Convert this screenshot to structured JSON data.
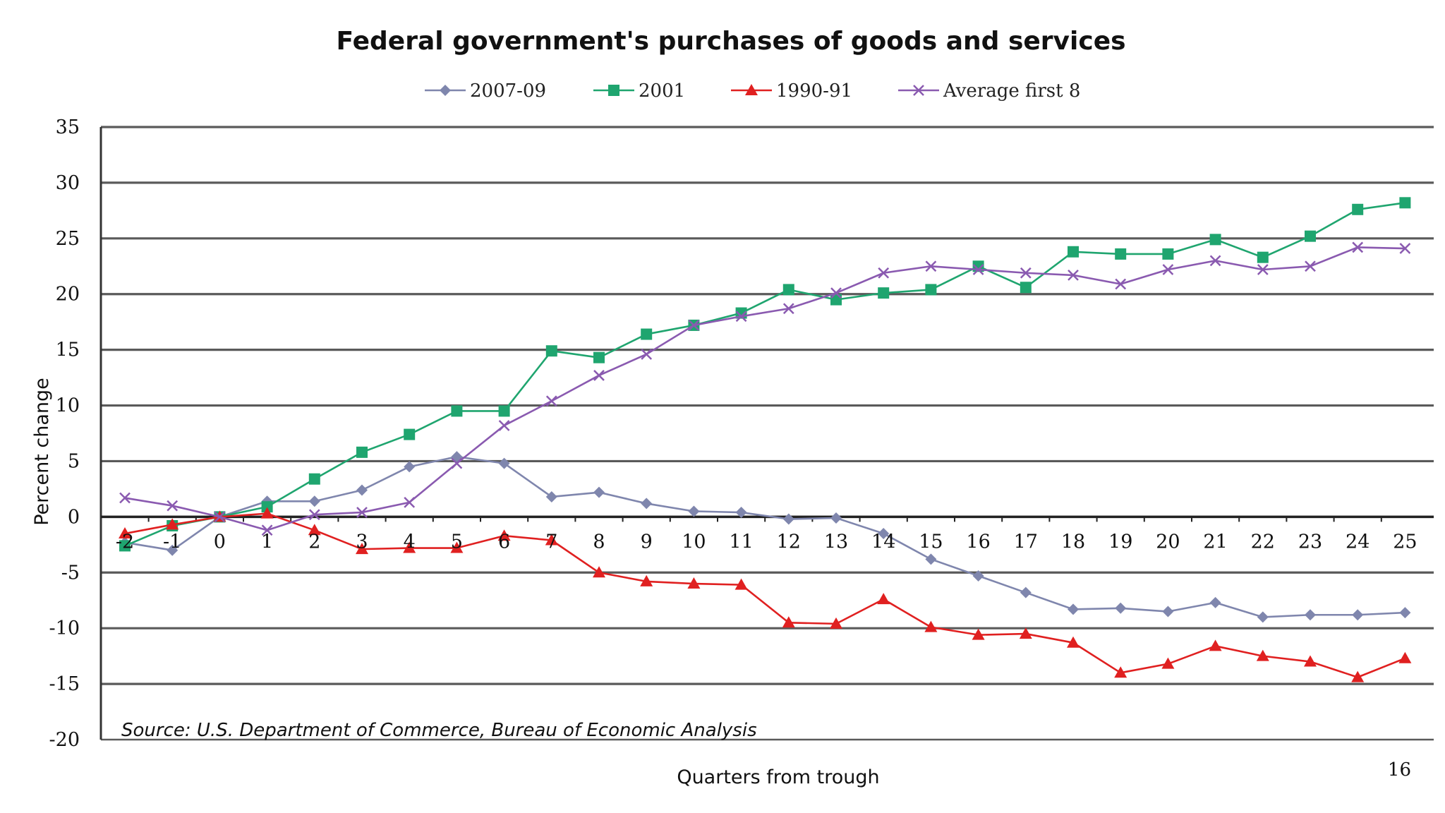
{
  "chart_data": {
    "type": "line",
    "title": "Federal government's purchases of goods and services",
    "xlabel": "Quarters from trough",
    "ylabel": "Percent change",
    "x": [
      -2,
      -1,
      0,
      1,
      2,
      3,
      4,
      5,
      6,
      7,
      8,
      9,
      10,
      11,
      12,
      13,
      14,
      15,
      16,
      17,
      18,
      19,
      20,
      21,
      22,
      23,
      24,
      25
    ],
    "x_tick_labels": [
      "-2",
      "-1",
      "0",
      "1",
      "2",
      "3",
      "4",
      "5",
      "6",
      "7",
      "8",
      "9",
      "10",
      "11",
      "12",
      "13",
      "14",
      "15",
      "16",
      "17",
      "18",
      "19",
      "20",
      "21",
      "22",
      "23",
      "24",
      "25"
    ],
    "ylim": [
      -20,
      35
    ],
    "y_ticks": [
      35,
      30,
      25,
      20,
      15,
      10,
      5,
      0,
      -5,
      -10,
      -15,
      -20
    ],
    "y_tick_labels": [
      "35",
      "30",
      "25",
      "20",
      "15",
      "10",
      "5",
      "0",
      "-5",
      "-10",
      "-15",
      "-20"
    ],
    "grid": "horizontal",
    "legend_position": "top",
    "series": [
      {
        "name": "2007-09",
        "color": "#7f86ad",
        "marker": "diamond",
        "values": [
          -2.3,
          -3.0,
          0.0,
          1.4,
          1.4,
          2.4,
          4.5,
          5.4,
          4.8,
          1.8,
          2.2,
          1.2,
          0.5,
          0.4,
          -0.2,
          -0.1,
          -1.5,
          -3.8,
          -5.3,
          -6.8,
          -8.3,
          -8.2,
          -8.5,
          -7.7,
          -9.0,
          -8.8,
          -8.8,
          -8.6
        ]
      },
      {
        "name": "2001",
        "color": "#1fa56f",
        "marker": "square",
        "values": [
          -2.6,
          -0.8,
          0.0,
          0.9,
          3.4,
          5.8,
          7.4,
          9.5,
          9.5,
          14.9,
          14.3,
          16.4,
          17.2,
          18.3,
          20.4,
          19.5,
          20.1,
          20.4,
          22.5,
          20.6,
          23.8,
          23.6,
          23.6,
          24.9,
          23.3,
          25.2,
          27.6,
          28.2
        ]
      },
      {
        "name": "1990-91",
        "color": "#e02020",
        "marker": "triangle",
        "values": [
          -1.5,
          -0.7,
          0.0,
          0.3,
          -1.2,
          -2.9,
          -2.8,
          -2.8,
          -1.7,
          -2.1,
          -5.0,
          -5.8,
          -6.0,
          -6.1,
          -9.5,
          -9.6,
          -7.4,
          -9.9,
          -10.6,
          -10.5,
          -11.3,
          -14.0,
          -13.2,
          -11.6,
          -12.5,
          -13.0,
          -14.4,
          -12.7
        ]
      },
      {
        "name": "Average first 8",
        "color": "#8a5ab0",
        "marker": "x",
        "values": [
          1.7,
          1.0,
          0.0,
          -1.2,
          0.2,
          0.4,
          1.3,
          4.8,
          8.2,
          10.4,
          12.7,
          14.6,
          17.2,
          18.0,
          18.7,
          20.1,
          21.9,
          22.5,
          22.2,
          21.9,
          21.7,
          20.9,
          22.2,
          23.0,
          22.2,
          22.5,
          24.2,
          24.1
        ]
      }
    ],
    "annotations": {
      "source": "Source: U.S. Department of Commerce, Bureau of Economic Analysis",
      "page_number": "16"
    }
  }
}
